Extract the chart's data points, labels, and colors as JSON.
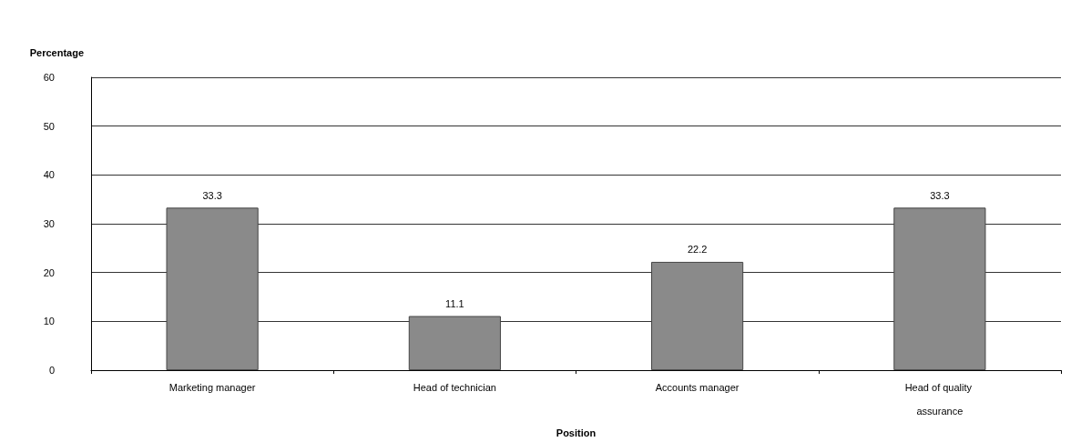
{
  "chart_data": {
    "type": "bar",
    "xlabel": "Position",
    "ylabel": "Percentage",
    "categories": [
      "Marketing manager",
      "Head of technician",
      "Accounts manager",
      "Head of quality assurance"
    ],
    "values": [
      33.3,
      11.1,
      22.2,
      33.3
    ],
    "color": "#8a8a8a",
    "ylim": [
      0,
      60
    ],
    "yticks": [
      0,
      10,
      20,
      30,
      40,
      50,
      60
    ],
    "grid": "y",
    "data_labels": true
  }
}
